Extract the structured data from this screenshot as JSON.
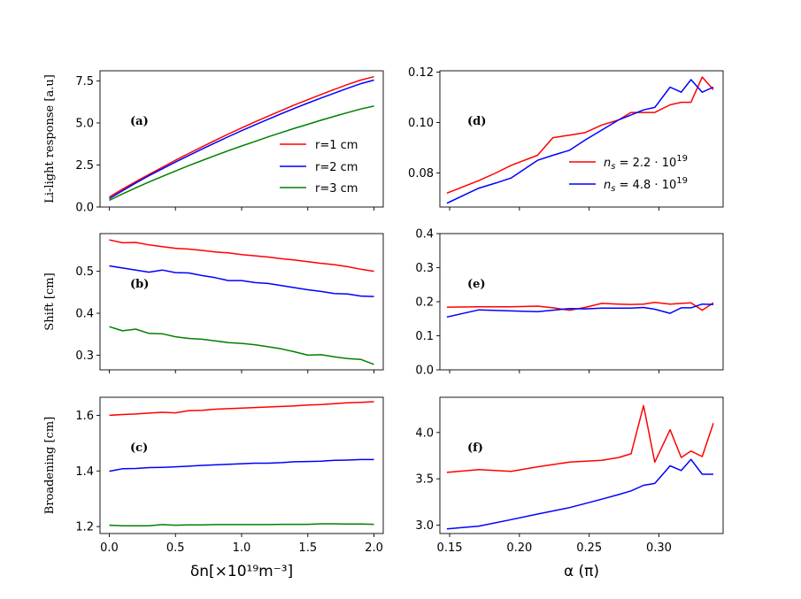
{
  "chart_data": [
    {
      "id": "a",
      "type": "line",
      "panel_label": "(a)",
      "ylabel": "Li-light response [a.u]",
      "xlim": [
        -0.07,
        2.07
      ],
      "ylim": [
        0,
        8.1
      ],
      "xticks": [
        0.0,
        0.5,
        1.0,
        1.5,
        2.0
      ],
      "xtick_labels": [],
      "yticks": [
        0.0,
        2.5,
        5.0,
        7.5
      ],
      "ytick_labels": [
        "0.0",
        "2.5",
        "5.0",
        "7.5"
      ],
      "legend": "center-right",
      "x": [
        0.0,
        0.1,
        0.2,
        0.3,
        0.4,
        0.5,
        0.6,
        0.7,
        0.8,
        0.9,
        1.0,
        1.1,
        1.2,
        1.3,
        1.4,
        1.5,
        1.6,
        1.7,
        1.8,
        1.9,
        2.0
      ],
      "series": [
        {
          "name": "r=1 cm",
          "color": "#ff0000",
          "values": [
            0.6,
            1.06,
            1.51,
            1.94,
            2.36,
            2.78,
            3.18,
            3.57,
            3.96,
            4.34,
            4.7,
            5.06,
            5.4,
            5.74,
            6.07,
            6.38,
            6.69,
            6.99,
            7.28,
            7.55,
            7.75
          ]
        },
        {
          "name": "r=2 cm",
          "color": "#0000ff",
          "values": [
            0.5,
            0.97,
            1.43,
            1.86,
            2.27,
            2.67,
            3.06,
            3.44,
            3.82,
            4.18,
            4.54,
            4.88,
            5.22,
            5.55,
            5.87,
            6.18,
            6.48,
            6.77,
            7.06,
            7.33,
            7.55
          ]
        },
        {
          "name": "r=3 cm",
          "color": "#008000",
          "values": [
            0.4,
            0.78,
            1.14,
            1.49,
            1.82,
            2.14,
            2.46,
            2.76,
            3.06,
            3.35,
            3.63,
            3.9,
            4.17,
            4.43,
            4.68,
            4.92,
            5.16,
            5.39,
            5.61,
            5.83,
            6.0
          ]
        }
      ]
    },
    {
      "id": "b",
      "type": "line",
      "panel_label": "(b)",
      "ylabel": "Shift [cm]",
      "xlim": [
        -0.07,
        2.07
      ],
      "ylim": [
        0.265,
        0.59
      ],
      "xticks": [
        0.0,
        0.5,
        1.0,
        1.5,
        2.0
      ],
      "xtick_labels": [],
      "yticks": [
        0.3,
        0.4,
        0.5
      ],
      "ytick_labels": [
        "0.3",
        "0.4",
        "0.5"
      ],
      "x": [
        0.0,
        0.1,
        0.2,
        0.3,
        0.4,
        0.5,
        0.6,
        0.7,
        0.8,
        0.9,
        1.0,
        1.1,
        1.2,
        1.3,
        1.4,
        1.5,
        1.6,
        1.7,
        1.8,
        1.9,
        2.0
      ],
      "series": [
        {
          "name": "r=1 cm",
          "color": "#ff0000",
          "values": [
            0.575,
            0.568,
            0.569,
            0.563,
            0.559,
            0.555,
            0.553,
            0.55,
            0.546,
            0.544,
            0.54,
            0.537,
            0.534,
            0.53,
            0.527,
            0.523,
            0.519,
            0.516,
            0.511,
            0.505,
            0.5
          ]
        },
        {
          "name": "r=2 cm",
          "color": "#0000ff",
          "values": [
            0.513,
            0.508,
            0.503,
            0.498,
            0.503,
            0.497,
            0.496,
            0.49,
            0.485,
            0.478,
            0.478,
            0.473,
            0.471,
            0.466,
            0.461,
            0.456,
            0.452,
            0.447,
            0.446,
            0.441,
            0.44
          ]
        },
        {
          "name": "r=3 cm",
          "color": "#008000",
          "values": [
            0.368,
            0.358,
            0.362,
            0.352,
            0.351,
            0.344,
            0.34,
            0.338,
            0.334,
            0.33,
            0.328,
            0.325,
            0.32,
            0.315,
            0.308,
            0.3,
            0.301,
            0.296,
            0.292,
            0.29,
            0.278
          ]
        }
      ]
    },
    {
      "id": "c",
      "type": "line",
      "panel_label": "(c)",
      "ylabel": "Broadening [cm]",
      "xlabel": "δn[×10¹⁹m⁻³]",
      "xlim": [
        -0.07,
        2.07
      ],
      "ylim": [
        1.175,
        1.665
      ],
      "xticks": [
        0.0,
        0.5,
        1.0,
        1.5,
        2.0
      ],
      "xtick_labels": [
        "0.0",
        "0.5",
        "1.0",
        "1.5",
        "2.0"
      ],
      "yticks": [
        1.2,
        1.4,
        1.6
      ],
      "ytick_labels": [
        "1.2",
        "1.4",
        "1.6"
      ],
      "x": [
        0.0,
        0.1,
        0.2,
        0.3,
        0.4,
        0.5,
        0.6,
        0.7,
        0.8,
        0.9,
        1.0,
        1.1,
        1.2,
        1.3,
        1.4,
        1.5,
        1.6,
        1.7,
        1.8,
        1.9,
        2.0
      ],
      "series": [
        {
          "name": "r=1 cm",
          "color": "#ff0000",
          "values": [
            1.6,
            1.603,
            1.605,
            1.608,
            1.611,
            1.609,
            1.617,
            1.618,
            1.622,
            1.624,
            1.626,
            1.628,
            1.63,
            1.632,
            1.634,
            1.637,
            1.639,
            1.642,
            1.645,
            1.647,
            1.649
          ]
        },
        {
          "name": "r=2 cm",
          "color": "#0000ff",
          "values": [
            1.399,
            1.408,
            1.409,
            1.412,
            1.413,
            1.415,
            1.417,
            1.42,
            1.422,
            1.424,
            1.426,
            1.428,
            1.428,
            1.43,
            1.433,
            1.434,
            1.435,
            1.438,
            1.439,
            1.441,
            1.441
          ]
        },
        {
          "name": "r=3 cm",
          "color": "#008000",
          "values": [
            1.205,
            1.203,
            1.203,
            1.203,
            1.207,
            1.205,
            1.206,
            1.206,
            1.207,
            1.207,
            1.207,
            1.207,
            1.207,
            1.208,
            1.208,
            1.208,
            1.21,
            1.21,
            1.209,
            1.209,
            1.208
          ]
        }
      ]
    },
    {
      "id": "d",
      "type": "line",
      "panel_label": "(d)",
      "ylabel": "",
      "xlim": [
        0.143,
        0.346
      ],
      "ylim": [
        0.0665,
        0.1205
      ],
      "xticks": [
        0.15,
        0.2,
        0.25,
        0.3
      ],
      "xtick_labels": [],
      "yticks": [
        0.08,
        0.1,
        0.12
      ],
      "ytick_labels": [
        "0.08",
        "0.10",
        "0.12"
      ],
      "legend": "center-right",
      "x": [
        0.148,
        0.171,
        0.183,
        0.194,
        0.213,
        0.224,
        0.236,
        0.247,
        0.259,
        0.271,
        0.28,
        0.289,
        0.297,
        0.308,
        0.316,
        0.323,
        0.331,
        0.339
      ],
      "series": [
        {
          "name": "n_s = 2.2·10^19",
          "label_main": "n",
          "label_sub": "s",
          "label_mid": " = 2.2 · 10",
          "label_sup": "19",
          "color": "#ff0000",
          "values": [
            0.072,
            0.077,
            0.08,
            0.083,
            0.087,
            0.094,
            0.095,
            0.096,
            0.099,
            0.101,
            0.104,
            0.104,
            0.104,
            0.107,
            0.108,
            0.108,
            0.118,
            0.113
          ]
        },
        {
          "name": "n_s = 4.8·10^19",
          "label_main": "n",
          "label_sub": "s",
          "label_mid": " = 4.8 · 10",
          "label_sup": "19",
          "color": "#0000ff",
          "values": [
            0.068,
            0.074,
            0.076,
            0.078,
            0.085,
            0.087,
            0.089,
            0.093,
            0.097,
            0.101,
            0.103,
            0.105,
            0.106,
            0.114,
            0.112,
            0.117,
            0.112,
            0.114
          ]
        }
      ]
    },
    {
      "id": "e",
      "type": "line",
      "panel_label": "(e)",
      "ylabel": "",
      "xlim": [
        0.143,
        0.346
      ],
      "ylim": [
        0.0,
        0.4
      ],
      "xticks": [
        0.15,
        0.2,
        0.25,
        0.3
      ],
      "xtick_labels": [],
      "yticks": [
        0.0,
        0.1,
        0.2,
        0.3,
        0.4
      ],
      "ytick_labels": [
        "0.0",
        "0.1",
        "0.2",
        "0.3",
        "0.4"
      ],
      "x": [
        0.148,
        0.171,
        0.194,
        0.213,
        0.224,
        0.236,
        0.247,
        0.259,
        0.271,
        0.28,
        0.289,
        0.297,
        0.308,
        0.316,
        0.323,
        0.331,
        0.339
      ],
      "series": [
        {
          "name": "n_s = 2.2·10^19",
          "color": "#ff0000",
          "values": [
            0.184,
            0.185,
            0.185,
            0.187,
            0.182,
            0.175,
            0.183,
            0.195,
            0.193,
            0.192,
            0.193,
            0.198,
            0.193,
            0.195,
            0.197,
            0.175,
            0.197
          ]
        },
        {
          "name": "n_s = 4.8·10^19",
          "color": "#0000ff",
          "values": [
            0.155,
            0.176,
            0.173,
            0.171,
            0.175,
            0.18,
            0.179,
            0.181,
            0.181,
            0.181,
            0.183,
            0.178,
            0.166,
            0.182,
            0.182,
            0.193,
            0.192
          ]
        }
      ]
    },
    {
      "id": "f",
      "type": "line",
      "panel_label": "(f)",
      "ylabel": "",
      "xlabel": "α (π)",
      "xlim": [
        0.143,
        0.346
      ],
      "ylim": [
        2.91,
        4.38
      ],
      "xticks": [
        0.15,
        0.2,
        0.25,
        0.3
      ],
      "xtick_labels": [
        "0.15",
        "0.20",
        "0.25",
        "0.30"
      ],
      "yticks": [
        3.0,
        3.5,
        4.0
      ],
      "ytick_labels": [
        "3.0",
        "3.5",
        "4.0"
      ],
      "x": [
        0.148,
        0.171,
        0.194,
        0.213,
        0.236,
        0.259,
        0.271,
        0.28,
        0.289,
        0.297,
        0.308,
        0.316,
        0.323,
        0.331,
        0.339
      ],
      "series": [
        {
          "name": "n_s = 2.2·10^19",
          "color": "#ff0000",
          "values": [
            3.57,
            3.6,
            3.58,
            3.63,
            3.68,
            3.7,
            3.73,
            3.77,
            4.29,
            3.68,
            4.03,
            3.73,
            3.8,
            3.74,
            4.1
          ]
        },
        {
          "name": "n_s = 4.8·10^19",
          "color": "#0000ff",
          "values": [
            2.96,
            2.99,
            3.06,
            3.12,
            3.19,
            3.28,
            3.33,
            3.37,
            3.43,
            3.45,
            3.64,
            3.59,
            3.71,
            3.55,
            3.55
          ]
        }
      ]
    }
  ]
}
